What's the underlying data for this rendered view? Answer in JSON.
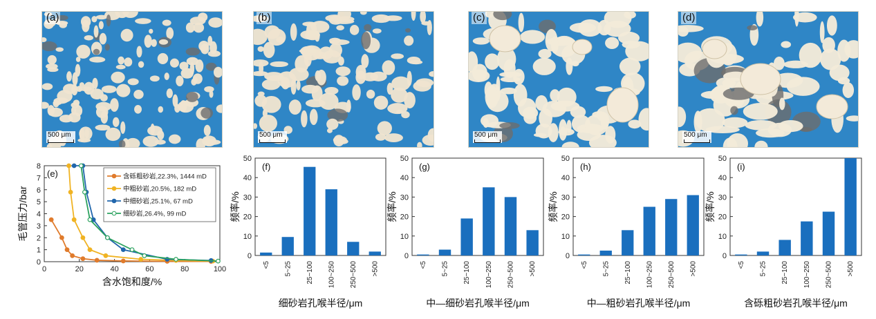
{
  "photos": [
    {
      "label": "(a)",
      "scale": "500 μm",
      "colors": {
        "pore": "#2f86c6",
        "grain": "#efe4d0",
        "dark": "#6d6d6d"
      }
    },
    {
      "label": "(b)",
      "scale": "500 μm",
      "colors": {
        "pore": "#2f86c6",
        "grain": "#efe4d0",
        "dark": "#6d6d6d"
      }
    },
    {
      "label": "(c)",
      "scale": "500 μm",
      "colors": {
        "pore": "#2f86c6",
        "grain": "#f3ead9",
        "dark": "#6d6d6d"
      }
    },
    {
      "label": "(d)",
      "scale": "500 μm",
      "colors": {
        "pore": "#2f86c6",
        "grain": "#f3ead9",
        "dark": "#6d6d6d"
      }
    }
  ],
  "chart_data": [
    {
      "type": "line",
      "panel_label": "(e)",
      "xlabel": "含水饱和度/%",
      "ylabel": "毛管压力/bar",
      "xlim": [
        0,
        100
      ],
      "ylim": [
        0,
        8
      ],
      "xticks": [
        0,
        20,
        40,
        60,
        80,
        100
      ],
      "yticks": [
        0,
        1,
        2,
        3,
        4,
        5,
        6,
        7,
        8
      ],
      "legend_position": "top-right",
      "series": [
        {
          "name": "含砾粗砂岩,22.3%, 1444 mD",
          "color": "#e07b2c",
          "marker": "filled",
          "x": [
            4,
            10,
            13,
            16,
            22,
            30,
            45,
            70,
            95
          ],
          "y": [
            3.5,
            2.0,
            1.0,
            0.5,
            0.25,
            0.12,
            0.06,
            0.03,
            0.02
          ]
        },
        {
          "name": "中粗砂岩,20.5%, 182 mD",
          "color": "#f0b323",
          "marker": "filled",
          "x": [
            14,
            15,
            17,
            22,
            26,
            35,
            55,
            75,
            96
          ],
          "y": [
            8,
            5.8,
            3.5,
            2.0,
            1.0,
            0.5,
            0.2,
            0.1,
            0.05
          ]
        },
        {
          "name": "中细砂岩,25.1%, 67 mD",
          "color": "#2166ac",
          "marker": "filled",
          "x": [
            17,
            22,
            24,
            28,
            36,
            45,
            70,
            95
          ],
          "y": [
            8,
            8,
            5.8,
            3.5,
            2.0,
            1.0,
            0.2,
            0.1
          ]
        },
        {
          "name": "细砂岩,26.4%, 99 mD",
          "color": "#2ca25f",
          "marker": "open",
          "x": [
            21,
            23,
            26,
            36,
            50,
            57,
            75,
            99
          ],
          "y": [
            8,
            5.8,
            3.5,
            2.0,
            1.0,
            0.5,
            0.2,
            0.05
          ]
        }
      ]
    },
    {
      "type": "bar",
      "panel_label": "(f)",
      "categories": [
        "<5",
        "5~25",
        "25~100",
        "100~250",
        "250~500",
        ">500"
      ],
      "values": [
        1.5,
        9.5,
        45.5,
        34,
        7,
        2
      ],
      "ylim": [
        0,
        50
      ],
      "yticks": [
        0,
        10,
        20,
        30,
        40,
        50
      ],
      "xlabel": "细砂岩孔喉半径/μm",
      "ylabel": "频率/%",
      "color": "#1a6fbe"
    },
    {
      "type": "bar",
      "panel_label": "(g)",
      "categories": [
        "<5",
        "5~25",
        "25~100",
        "100~250",
        "250~500",
        ">500"
      ],
      "values": [
        0.5,
        3,
        19,
        35,
        30,
        13
      ],
      "ylim": [
        0,
        50
      ],
      "yticks": [
        0,
        10,
        20,
        30,
        40,
        50
      ],
      "xlabel": "中—细砂岩孔喉半径/μm",
      "ylabel": "频率/%",
      "color": "#1a6fbe"
    },
    {
      "type": "bar",
      "panel_label": "(h)",
      "categories": [
        "<5",
        "5~25",
        "25~100",
        "100~250",
        "250~500",
        ">500"
      ],
      "values": [
        0.5,
        2.5,
        13,
        25,
        29,
        31
      ],
      "ylim": [
        0,
        50
      ],
      "yticks": [
        0,
        10,
        20,
        30,
        40,
        50
      ],
      "xlabel": "中—粗砂岩孔喉半径/μm",
      "ylabel": "频率/%",
      "color": "#1a6fbe"
    },
    {
      "type": "bar",
      "panel_label": "(i)",
      "categories": [
        "<5",
        "5~25",
        "25~100",
        "100~250",
        "250~500",
        ">500"
      ],
      "values": [
        0.5,
        2,
        8,
        17.5,
        22.5,
        50
      ],
      "ylim": [
        0,
        50
      ],
      "yticks": [
        0,
        10,
        20,
        30,
        40,
        50
      ],
      "xlabel": "含砾粗砂岩孔喉半径/μm",
      "ylabel": "频率/%",
      "color": "#1a6fbe"
    }
  ]
}
